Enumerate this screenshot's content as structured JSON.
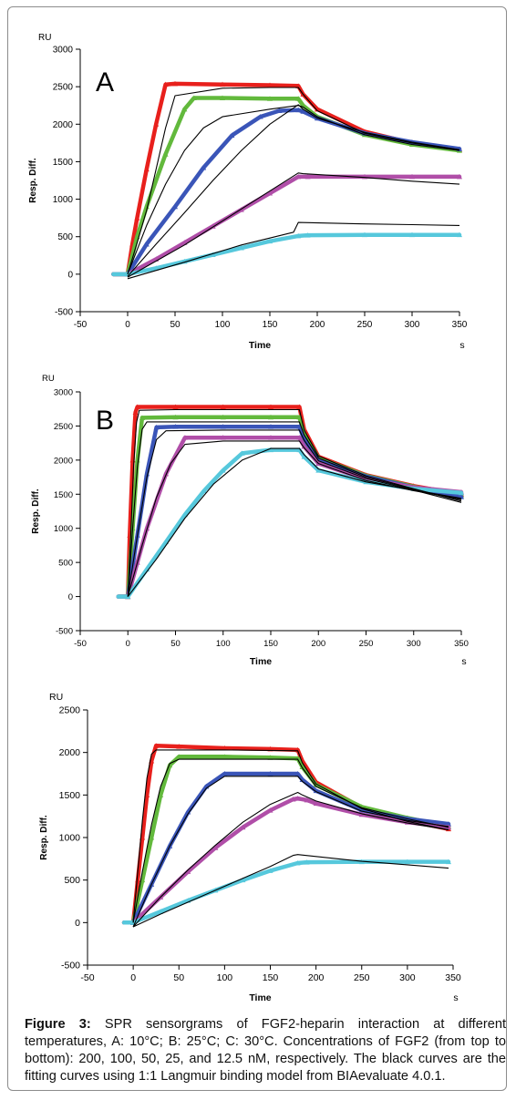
{
  "chart_data": [
    {
      "type": "line",
      "panel_letter": "A",
      "unit_label": "RU",
      "ylabel": "Resp. Diff.",
      "xlabel": "Time",
      "x_unit": "s",
      "xlim": [
        -50,
        350
      ],
      "ylim": [
        -500,
        3000
      ],
      "xticks": [
        -50,
        0,
        50,
        100,
        150,
        200,
        250,
        300,
        350
      ],
      "yticks": [
        -500,
        0,
        500,
        1000,
        1500,
        2000,
        2500,
        3000
      ],
      "injection_end": 180,
      "baseline_start": -15,
      "series": [
        {
          "color": "#e8201c",
          "concentration": 200,
          "x": [
            0,
            5,
            10,
            20,
            30,
            40,
            50,
            100,
            150,
            180,
            185,
            200,
            250,
            300,
            350
          ],
          "y": [
            0,
            400,
            750,
            1400,
            2000,
            2530,
            2540,
            2530,
            2520,
            2510,
            2400,
            2200,
            1900,
            1750,
            1660
          ]
        },
        {
          "color": "#62b93c",
          "concentration": 100,
          "x": [
            0,
            10,
            20,
            40,
            60,
            70,
            100,
            150,
            180,
            185,
            200,
            250,
            300,
            350
          ],
          "y": [
            0,
            500,
            900,
            1600,
            2200,
            2350,
            2350,
            2340,
            2340,
            2250,
            2100,
            1860,
            1730,
            1650
          ]
        },
        {
          "color": "#3a55b8",
          "concentration": 50,
          "x": [
            0,
            20,
            50,
            80,
            110,
            140,
            160,
            180,
            185,
            200,
            250,
            300,
            350
          ],
          "y": [
            0,
            400,
            900,
            1420,
            1850,
            2100,
            2180,
            2190,
            2170,
            2080,
            1880,
            1760,
            1670
          ]
        },
        {
          "color": "#b04ea8",
          "concentration": 25,
          "x": [
            0,
            30,
            60,
            90,
            120,
            150,
            180,
            190,
            250,
            300,
            350
          ],
          "y": [
            0,
            200,
            420,
            640,
            860,
            1080,
            1300,
            1300,
            1300,
            1300,
            1300
          ]
        },
        {
          "color": "#56c8dc",
          "concentration": 12.5,
          "x": [
            0,
            30,
            60,
            90,
            120,
            150,
            180,
            190,
            250,
            300,
            350
          ],
          "y": [
            0,
            80,
            170,
            260,
            350,
            440,
            510,
            520,
            525,
            525,
            525
          ]
        }
      ],
      "fits": [
        {
          "x": [
            0,
            10,
            20,
            30,
            40,
            50,
            100,
            150,
            180,
            185,
            200,
            250,
            300,
            350
          ],
          "y": [
            0,
            420,
            850,
            1400,
            1950,
            2380,
            2480,
            2490,
            2490,
            2400,
            2180,
            1880,
            1750,
            1660
          ]
        },
        {
          "x": [
            0,
            20,
            40,
            60,
            80,
            100,
            150,
            180,
            185,
            200,
            250,
            300,
            350
          ],
          "y": [
            0,
            650,
            1200,
            1650,
            1950,
            2100,
            2200,
            2250,
            2230,
            2100,
            1860,
            1730,
            1650
          ]
        },
        {
          "x": [
            0,
            30,
            60,
            90,
            120,
            150,
            180,
            185,
            200,
            250,
            300,
            350
          ],
          "y": [
            -30,
            400,
            820,
            1250,
            1650,
            2000,
            2260,
            2200,
            2080,
            1890,
            1760,
            1660
          ]
        },
        {
          "x": [
            0,
            60,
            120,
            180,
            185,
            250,
            300,
            350
          ],
          "y": [
            -40,
            390,
            870,
            1350,
            1340,
            1290,
            1240,
            1200
          ]
        },
        {
          "x": [
            0,
            60,
            120,
            175,
            180,
            250,
            300,
            350
          ],
          "y": [
            -60,
            160,
            390,
            560,
            690,
            670,
            660,
            650
          ]
        }
      ]
    },
    {
      "type": "line",
      "panel_letter": "B",
      "unit_label": "RU",
      "ylabel": "Resp. Diff.",
      "xlabel": "Time",
      "x_unit": "s",
      "xlim": [
        -50,
        350
      ],
      "ylim": [
        -500,
        3000
      ],
      "xticks": [
        -50,
        0,
        50,
        100,
        150,
        200,
        250,
        300,
        350
      ],
      "yticks": [
        -500,
        0,
        500,
        1000,
        1500,
        2000,
        2500,
        3000
      ],
      "injection_end": 180,
      "baseline_start": -10,
      "series": [
        {
          "color": "#e8201c",
          "concentration": 200,
          "x": [
            0,
            2,
            5,
            8,
            10,
            50,
            100,
            150,
            180,
            185,
            200,
            250,
            300,
            350
          ],
          "y": [
            0,
            900,
            2000,
            2700,
            2780,
            2780,
            2780,
            2780,
            2780,
            2450,
            2050,
            1780,
            1620,
            1500
          ]
        },
        {
          "color": "#62b93c",
          "concentration": 100,
          "x": [
            0,
            5,
            10,
            15,
            50,
            100,
            150,
            180,
            185,
            200,
            250,
            300,
            350
          ],
          "y": [
            0,
            1000,
            2000,
            2620,
            2630,
            2630,
            2630,
            2630,
            2380,
            2030,
            1770,
            1610,
            1480
          ]
        },
        {
          "color": "#3a55b8",
          "concentration": 50,
          "x": [
            0,
            10,
            20,
            30,
            50,
            100,
            150,
            180,
            185,
            200,
            250,
            300,
            350
          ],
          "y": [
            0,
            900,
            1800,
            2480,
            2490,
            2490,
            2490,
            2490,
            2300,
            2000,
            1760,
            1600,
            1460
          ]
        },
        {
          "color": "#b04ea8",
          "concentration": 25,
          "x": [
            0,
            10,
            20,
            40,
            60,
            100,
            150,
            180,
            185,
            200,
            250,
            300,
            350
          ],
          "y": [
            0,
            500,
            1000,
            1800,
            2330,
            2330,
            2330,
            2330,
            2200,
            1950,
            1720,
            1600,
            1530
          ]
        },
        {
          "color": "#56c8dc",
          "concentration": 12.5,
          "x": [
            0,
            20,
            40,
            60,
            80,
            100,
            120,
            150,
            180,
            185,
            200,
            250,
            300,
            350
          ],
          "y": [
            0,
            400,
            800,
            1200,
            1550,
            1850,
            2100,
            2150,
            2150,
            2050,
            1850,
            1680,
            1580,
            1520
          ]
        }
      ],
      "fits": [
        {
          "x": [
            0,
            3,
            6,
            9,
            12,
            50,
            100,
            180,
            185,
            200,
            250,
            300,
            350
          ],
          "y": [
            0,
            900,
            1900,
            2550,
            2730,
            2740,
            2740,
            2740,
            2440,
            2060,
            1770,
            1580,
            1400
          ]
        },
        {
          "x": [
            0,
            5,
            10,
            15,
            20,
            100,
            180,
            185,
            200,
            250,
            300,
            350
          ],
          "y": [
            0,
            1000,
            1900,
            2450,
            2560,
            2560,
            2560,
            2370,
            2030,
            1750,
            1570,
            1420
          ]
        },
        {
          "x": [
            0,
            10,
            20,
            30,
            40,
            100,
            180,
            185,
            200,
            250,
            300,
            350
          ],
          "y": [
            0,
            900,
            1750,
            2300,
            2430,
            2440,
            2440,
            2290,
            1990,
            1730,
            1560,
            1380
          ]
        },
        {
          "x": [
            0,
            15,
            30,
            45,
            60,
            100,
            180,
            185,
            200,
            250,
            300,
            350
          ],
          "y": [
            0,
            750,
            1450,
            1950,
            2230,
            2280,
            2280,
            2180,
            1950,
            1700,
            1550,
            1430
          ]
        },
        {
          "x": [
            0,
            30,
            60,
            90,
            120,
            150,
            180,
            185,
            200,
            250,
            300,
            350
          ],
          "y": [
            0,
            550,
            1150,
            1650,
            2000,
            2170,
            2170,
            2080,
            1870,
            1680,
            1560,
            1440
          ]
        }
      ]
    },
    {
      "type": "line",
      "panel_letter": "",
      "unit_label": "RU",
      "ylabel": "Resp. Diff.",
      "xlabel": "Time",
      "x_unit": "s",
      "xlim": [
        -50,
        350
      ],
      "ylim": [
        -500,
        2500
      ],
      "xticks": [
        -50,
        0,
        50,
        100,
        150,
        200,
        250,
        300,
        350
      ],
      "yticks": [
        -500,
        0,
        500,
        1000,
        1500,
        2000,
        2500
      ],
      "injection_end": 180,
      "baseline_start": -10,
      "series": [
        {
          "color": "#e8201c",
          "concentration": 200,
          "x": [
            0,
            5,
            10,
            15,
            20,
            25,
            50,
            100,
            150,
            180,
            185,
            200,
            250,
            300,
            345
          ],
          "y": [
            0,
            500,
            1000,
            1500,
            1900,
            2080,
            2070,
            2050,
            2040,
            2030,
            1900,
            1650,
            1350,
            1200,
            1100
          ]
        },
        {
          "color": "#62b93c",
          "concentration": 100,
          "x": [
            0,
            10,
            20,
            30,
            40,
            50,
            100,
            150,
            180,
            185,
            200,
            250,
            300,
            345
          ],
          "y": [
            0,
            500,
            1000,
            1500,
            1850,
            1950,
            1950,
            1940,
            1930,
            1830,
            1620,
            1360,
            1230,
            1130
          ]
        },
        {
          "color": "#3a55b8",
          "concentration": 50,
          "x": [
            0,
            20,
            40,
            60,
            80,
            100,
            150,
            180,
            185,
            200,
            250,
            300,
            345
          ],
          "y": [
            0,
            450,
            900,
            1300,
            1600,
            1750,
            1750,
            1750,
            1680,
            1550,
            1320,
            1220,
            1160
          ]
        },
        {
          "color": "#b04ea8",
          "concentration": 25,
          "x": [
            0,
            30,
            60,
            90,
            120,
            150,
            175,
            180,
            190,
            200,
            250,
            300,
            345
          ],
          "y": [
            0,
            300,
            600,
            880,
            1120,
            1320,
            1450,
            1460,
            1440,
            1400,
            1270,
            1180,
            1120
          ]
        },
        {
          "color": "#56c8dc",
          "concentration": 12.5,
          "x": [
            0,
            30,
            60,
            90,
            120,
            150,
            180,
            190,
            250,
            300,
            345
          ],
          "y": [
            0,
            130,
            260,
            380,
            500,
            610,
            700,
            710,
            715,
            715,
            715
          ]
        }
      ],
      "fits": [
        {
          "x": [
            0,
            5,
            10,
            15,
            20,
            25,
            100,
            180,
            185,
            200,
            250,
            300,
            345
          ],
          "y": [
            0,
            600,
            1200,
            1700,
            1980,
            2030,
            2030,
            2020,
            1880,
            1630,
            1340,
            1190,
            1090
          ]
        },
        {
          "x": [
            0,
            10,
            20,
            30,
            40,
            50,
            100,
            180,
            185,
            200,
            250,
            300,
            345
          ],
          "y": [
            0,
            600,
            1150,
            1600,
            1870,
            1920,
            1920,
            1920,
            1820,
            1600,
            1350,
            1220,
            1120
          ]
        },
        {
          "x": [
            0,
            20,
            40,
            60,
            80,
            100,
            180,
            185,
            200,
            250,
            300,
            345
          ],
          "y": [
            -50,
            450,
            900,
            1280,
            1580,
            1720,
            1720,
            1660,
            1540,
            1310,
            1200,
            1130
          ]
        },
        {
          "x": [
            0,
            30,
            60,
            90,
            120,
            150,
            180,
            185,
            200,
            250,
            300,
            345
          ],
          "y": [
            -50,
            300,
            620,
            910,
            1180,
            1390,
            1530,
            1500,
            1430,
            1280,
            1170,
            1090
          ]
        },
        {
          "x": [
            0,
            30,
            60,
            90,
            120,
            150,
            175,
            180,
            250,
            300,
            345
          ],
          "y": [
            -50,
            100,
            240,
            380,
            520,
            660,
            790,
            800,
            720,
            680,
            640
          ]
        }
      ]
    }
  ],
  "caption": {
    "label": "Figure 3:",
    "text": "  SPR sensorgrams of FGF2-heparin interaction at different temperatures, A: 10°C; B: 25°C; C: 30°C.  Concentrations of FGF2 (from top to bottom): 200, 100, 50, 25, and 12.5 nM, respectively.  The black curves are the fitting curves using 1:1 Langmuir binding model from BIAevaluate 4.0.1."
  }
}
